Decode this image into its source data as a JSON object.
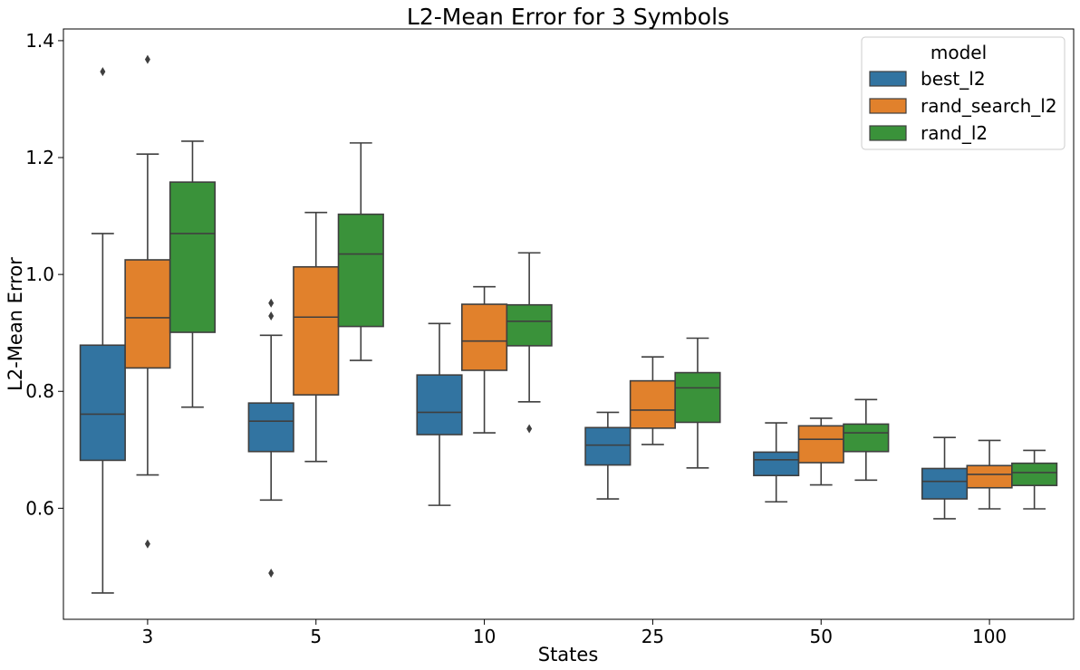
{
  "chart_data": {
    "type": "box",
    "title": "L2-Mean Error for 3 Symbols",
    "xlabel": "States",
    "ylabel": "L2-Mean Error",
    "categories": [
      "3",
      "5",
      "10",
      "25",
      "50",
      "100"
    ],
    "ylim": [
      0.41,
      1.42
    ],
    "yticks": [
      0.6,
      0.8,
      1.0,
      1.2,
      1.4
    ],
    "ytick_labels": [
      "0.6",
      "0.8",
      "1.0",
      "1.2",
      "1.4"
    ],
    "grid": false,
    "legend": {
      "title": "model",
      "placement": "top-right"
    },
    "series": [
      {
        "name": "best_l2",
        "color": "#3274a1",
        "boxes": [
          {
            "whislo": 0.455,
            "q1": 0.682,
            "med": 0.761,
            "q3": 0.879,
            "whishi": 1.07,
            "fliers": [
              1.347
            ]
          },
          {
            "whislo": 0.614,
            "q1": 0.697,
            "med": 0.749,
            "q3": 0.78,
            "whishi": 0.896,
            "fliers": [
              0.951,
              0.929,
              0.489
            ]
          },
          {
            "whislo": 0.605,
            "q1": 0.726,
            "med": 0.764,
            "q3": 0.828,
            "whishi": 0.916,
            "fliers": []
          },
          {
            "whislo": 0.616,
            "q1": 0.674,
            "med": 0.708,
            "q3": 0.738,
            "whishi": 0.764,
            "fliers": []
          },
          {
            "whislo": 0.611,
            "q1": 0.656,
            "med": 0.683,
            "q3": 0.696,
            "whishi": 0.746,
            "fliers": []
          },
          {
            "whislo": 0.582,
            "q1": 0.616,
            "med": 0.646,
            "q3": 0.668,
            "whishi": 0.721,
            "fliers": []
          }
        ]
      },
      {
        "name": "rand_search_l2",
        "color": "#e1812c",
        "boxes": [
          {
            "whislo": 0.657,
            "q1": 0.84,
            "med": 0.926,
            "q3": 1.025,
            "whishi": 1.206,
            "fliers": [
              1.368,
              0.539
            ]
          },
          {
            "whislo": 0.68,
            "q1": 0.794,
            "med": 0.927,
            "q3": 1.013,
            "whishi": 1.106,
            "fliers": []
          },
          {
            "whislo": 0.729,
            "q1": 0.836,
            "med": 0.886,
            "q3": 0.949,
            "whishi": 0.979,
            "fliers": []
          },
          {
            "whislo": 0.709,
            "q1": 0.737,
            "med": 0.768,
            "q3": 0.818,
            "whishi": 0.859,
            "fliers": []
          },
          {
            "whislo": 0.64,
            "q1": 0.678,
            "med": 0.718,
            "q3": 0.741,
            "whishi": 0.754,
            "fliers": []
          },
          {
            "whislo": 0.599,
            "q1": 0.635,
            "med": 0.658,
            "q3": 0.673,
            "whishi": 0.716,
            "fliers": []
          }
        ]
      },
      {
        "name": "rand_l2",
        "color": "#3a923a",
        "boxes": [
          {
            "whislo": 0.773,
            "q1": 0.901,
            "med": 1.07,
            "q3": 1.158,
            "whishi": 1.228,
            "fliers": []
          },
          {
            "whislo": 0.853,
            "q1": 0.911,
            "med": 1.035,
            "q3": 1.103,
            "whishi": 1.225,
            "fliers": []
          },
          {
            "whislo": 0.782,
            "q1": 0.878,
            "med": 0.92,
            "q3": 0.948,
            "whishi": 1.037,
            "fliers": [
              0.736
            ]
          },
          {
            "whislo": 0.669,
            "q1": 0.747,
            "med": 0.806,
            "q3": 0.832,
            "whishi": 0.891,
            "fliers": []
          },
          {
            "whislo": 0.648,
            "q1": 0.697,
            "med": 0.729,
            "q3": 0.744,
            "whishi": 0.786,
            "fliers": []
          },
          {
            "whislo": 0.599,
            "q1": 0.639,
            "med": 0.661,
            "q3": 0.677,
            "whishi": 0.699,
            "fliers": []
          }
        ]
      }
    ]
  }
}
